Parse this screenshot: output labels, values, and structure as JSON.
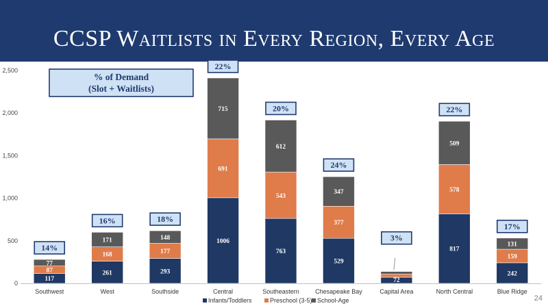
{
  "slide": {
    "title": "CCSP Waitlists in Every Region, Every Age",
    "page_number": "24"
  },
  "chart_data": {
    "type": "bar",
    "stacked": true,
    "categories": [
      "Southwest",
      "West",
      "Southside",
      "Central",
      "Southeastern",
      "Chesapeake Bay",
      "Capital Area",
      "North Central",
      "Blue Ridge"
    ],
    "series": [
      {
        "name": "Infants/Toddlers",
        "color": "#1f3864",
        "values": [
          117,
          261,
          293,
          1006,
          763,
          529,
          72,
          817,
          242
        ]
      },
      {
        "name": "Preschool (3-5)",
        "color": "#e07b4a",
        "values": [
          87,
          168,
          177,
          691,
          543,
          377,
          36,
          578,
          159
        ]
      },
      {
        "name": "School-Age",
        "color": "#595959",
        "values": [
          77,
          171,
          148,
          715,
          612,
          347,
          31,
          509,
          131
        ]
      }
    ],
    "percent_of_demand": [
      "14%",
      "16%",
      "18%",
      "22%",
      "20%",
      "24%",
      "3%",
      "22%",
      "17%"
    ],
    "ylim": [
      0,
      2500
    ],
    "yticks": [
      0,
      500,
      1000,
      1500,
      2000,
      2500
    ],
    "ytick_labels": [
      "0",
      "500",
      "1,000",
      "1,500",
      "2,000",
      "2,500"
    ],
    "annotation": {
      "line1": "% of Demand",
      "line2": "(Slot + Waitlists)"
    },
    "legend_position": "bottom"
  }
}
